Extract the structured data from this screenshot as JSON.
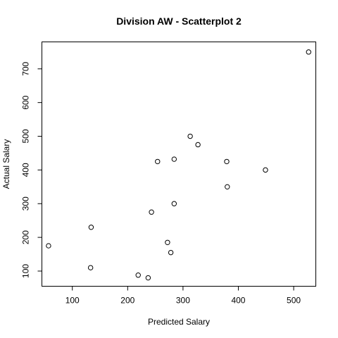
{
  "chart_data": {
    "type": "scatter",
    "title": "Division AW - Scatterplot 2",
    "xlabel": "Predicted Salary",
    "ylabel": "Actual Salary",
    "xlim": [
      45,
      540
    ],
    "ylim": [
      55,
      780
    ],
    "xticks": [
      100,
      200,
      300,
      400,
      500
    ],
    "yticks": [
      100,
      200,
      300,
      400,
      500,
      600,
      700
    ],
    "grid": false,
    "points": [
      {
        "x": 527,
        "y": 750
      },
      {
        "x": 313,
        "y": 500
      },
      {
        "x": 327,
        "y": 475
      },
      {
        "x": 284,
        "y": 432
      },
      {
        "x": 254,
        "y": 425
      },
      {
        "x": 379,
        "y": 425
      },
      {
        "x": 449,
        "y": 400
      },
      {
        "x": 380,
        "y": 350
      },
      {
        "x": 284,
        "y": 300
      },
      {
        "x": 243,
        "y": 275
      },
      {
        "x": 134,
        "y": 230
      },
      {
        "x": 272,
        "y": 185
      },
      {
        "x": 57,
        "y": 175
      },
      {
        "x": 278,
        "y": 155
      },
      {
        "x": 133,
        "y": 110
      },
      {
        "x": 219,
        "y": 88
      },
      {
        "x": 237,
        "y": 80
      }
    ]
  }
}
